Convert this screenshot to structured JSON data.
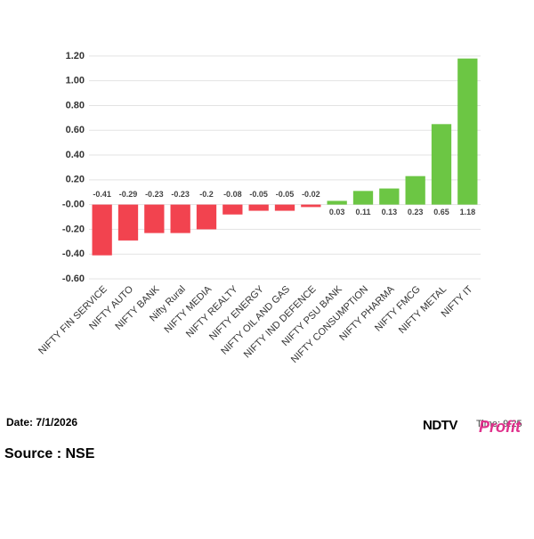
{
  "chart_data": {
    "type": "bar",
    "categories": [
      "NIFTY FIN SERVICE",
      "NIFTY AUTO",
      "NIFTY BANK",
      "Nifty Rural",
      "NIFTY MEDIA",
      "NIFTY REALTY",
      "NIFTY ENERGY",
      "NIFTY OIL AND GAS",
      "NIFTY IND DEFENCE",
      "NIFTY PSU BANK",
      "NIFTY CONSUMPTION",
      "NIFTY PHARMA",
      "NIFTY FMCG",
      "NIFTY METAL",
      "NIFTY IT"
    ],
    "values": [
      -0.41,
      -0.29,
      -0.23,
      -0.23,
      -0.2,
      -0.08,
      -0.05,
      -0.05,
      -0.02,
      0.03,
      0.11,
      0.13,
      0.23,
      0.65,
      1.18
    ],
    "positive_color": "#6cc644",
    "negative_color": "#f2434f",
    "ylim": [
      -0.6,
      1.3
    ],
    "yticks": [
      {
        "value": -0.6,
        "label": "-0.60"
      },
      {
        "value": -0.4,
        "label": "-0.40"
      },
      {
        "value": -0.2,
        "label": "-0.20"
      },
      {
        "value": 0,
        "label": "-0.00"
      },
      {
        "value": 0.2,
        "label": "0.20"
      },
      {
        "value": 0.4,
        "label": "0.40"
      },
      {
        "value": 0.6,
        "label": "0.60"
      },
      {
        "value": 0.8,
        "label": "0.80"
      },
      {
        "value": 1.0,
        "label": "1.00"
      },
      {
        "value": 1.2,
        "label": "1.20"
      }
    ],
    "grid": true
  },
  "footer": {
    "date": "Date: 7/1/2026",
    "time": "Time: 9:25",
    "brand": "NDTV",
    "brand_sub": "Profit",
    "source": "Source : NSE"
  }
}
